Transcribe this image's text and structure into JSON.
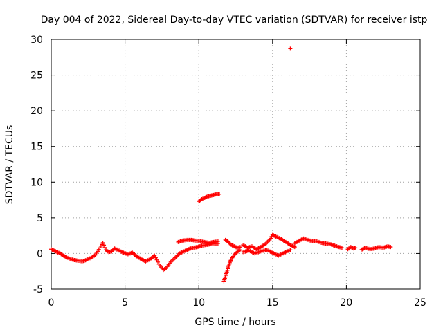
{
  "chart_data": {
    "type": "scatter",
    "title": "Day 004 of 2022, Sidereal Day-to-day VTEC variation (SDTVAR) for receiver istp",
    "xlabel": "GPS time / hours",
    "ylabel": "SDTVAR / TECUs",
    "xlim": [
      0,
      25
    ],
    "ylim": [
      -5,
      30
    ],
    "xticks": [
      0,
      5,
      10,
      15,
      20,
      25
    ],
    "yticks": [
      -5,
      0,
      5,
      10,
      15,
      20,
      25,
      30
    ],
    "xtick_labels": [
      "0",
      "5",
      "10",
      "15",
      "20",
      "25"
    ],
    "ytick_labels": [
      "-5",
      "0",
      "5",
      "10",
      "15",
      "20",
      "25",
      "30"
    ],
    "grid": true,
    "marker": "+",
    "series_color": "#ff0000",
    "series": [
      {
        "name": "SDTVAR",
        "segments": [
          {
            "x": [
              0.0,
              0.3,
              0.6,
              0.9,
              1.2,
              1.5,
              1.8,
              2.1,
              2.4,
              2.7,
              3.0,
              3.3,
              3.5,
              3.7,
              3.9,
              4.1,
              4.3,
              4.6,
              4.9,
              5.2,
              5.5,
              5.8,
              6.1,
              6.4,
              6.7,
              7.0,
              7.3,
              7.6,
              7.8,
              8.1,
              8.4,
              8.7,
              9.0,
              9.3,
              9.6,
              9.9,
              10.2,
              10.5,
              10.8,
              11.1,
              11.3
            ],
            "y": [
              0.6,
              0.3,
              0.0,
              -0.4,
              -0.7,
              -0.9,
              -1.0,
              -1.1,
              -0.9,
              -0.6,
              -0.2,
              0.8,
              1.5,
              0.5,
              0.2,
              0.3,
              0.7,
              0.4,
              0.1,
              -0.1,
              0.1,
              -0.4,
              -0.8,
              -1.1,
              -0.8,
              -0.3,
              -1.5,
              -2.3,
              -2.0,
              -1.2,
              -0.6,
              0.0,
              0.3,
              0.6,
              0.8,
              0.9,
              1.1,
              1.2,
              1.3,
              1.4,
              1.4
            ]
          },
          {
            "x": [
              8.6,
              8.9,
              9.2,
              9.5,
              9.8,
              10.1,
              10.4,
              10.7,
              11.0,
              11.3
            ],
            "y": [
              1.6,
              1.8,
              1.9,
              1.9,
              1.8,
              1.7,
              1.6,
              1.5,
              1.6,
              1.7
            ]
          },
          {
            "x": [
              10.0,
              10.2,
              10.4,
              10.6,
              10.8,
              11.0,
              11.2,
              11.4
            ],
            "y": [
              7.3,
              7.6,
              7.8,
              8.0,
              8.1,
              8.2,
              8.3,
              8.3
            ]
          },
          {
            "x": [
              11.7,
              11.8,
              11.9,
              12.0,
              12.1,
              12.2,
              12.4,
              12.6,
              12.8
            ],
            "y": [
              -3.9,
              -3.3,
              -2.6,
              -1.9,
              -1.3,
              -0.8,
              -0.2,
              0.2,
              0.5
            ]
          },
          {
            "x": [
              11.8,
              12.0,
              12.2,
              12.4,
              12.6,
              12.8
            ],
            "y": [
              1.9,
              1.6,
              1.2,
              1.0,
              0.8,
              0.9
            ]
          },
          {
            "x": [
              13.0,
              13.3,
              13.6,
              13.9,
              14.2,
              14.5,
              14.8,
              15.0,
              15.3,
              15.6,
              15.9,
              16.2,
              16.5
            ],
            "y": [
              1.2,
              0.8,
              1.0,
              0.6,
              0.9,
              1.3,
              1.9,
              2.6,
              2.3,
              2.0,
              1.6,
              1.2,
              0.9
            ]
          },
          {
            "x": [
              13.0,
              13.4,
              13.8,
              14.2,
              14.6,
              15.0,
              15.4,
              15.8,
              16.2
            ],
            "y": [
              0.2,
              0.4,
              0.0,
              0.3,
              0.5,
              0.1,
              -0.3,
              0.1,
              0.5
            ]
          },
          {
            "x": [
              16.5,
              16.8,
              17.1,
              17.4,
              17.7,
              18.0,
              18.3,
              18.6,
              18.9,
              19.2,
              19.5,
              19.7
            ],
            "y": [
              1.4,
              1.8,
              2.1,
              1.9,
              1.7,
              1.7,
              1.5,
              1.4,
              1.3,
              1.1,
              0.9,
              0.8
            ]
          },
          {
            "x": [
              20.1,
              20.3,
              20.5,
              20.6
            ],
            "y": [
              0.6,
              0.9,
              0.7,
              0.8
            ]
          },
          {
            "x": [
              21.0,
              21.3,
              21.6,
              21.9,
              22.2,
              22.5,
              22.8,
              23.0
            ],
            "y": [
              0.5,
              0.8,
              0.6,
              0.7,
              0.9,
              0.8,
              1.0,
              0.9
            ]
          },
          {
            "x": [
              16.2
            ],
            "y": [
              28.7
            ]
          }
        ]
      }
    ]
  }
}
